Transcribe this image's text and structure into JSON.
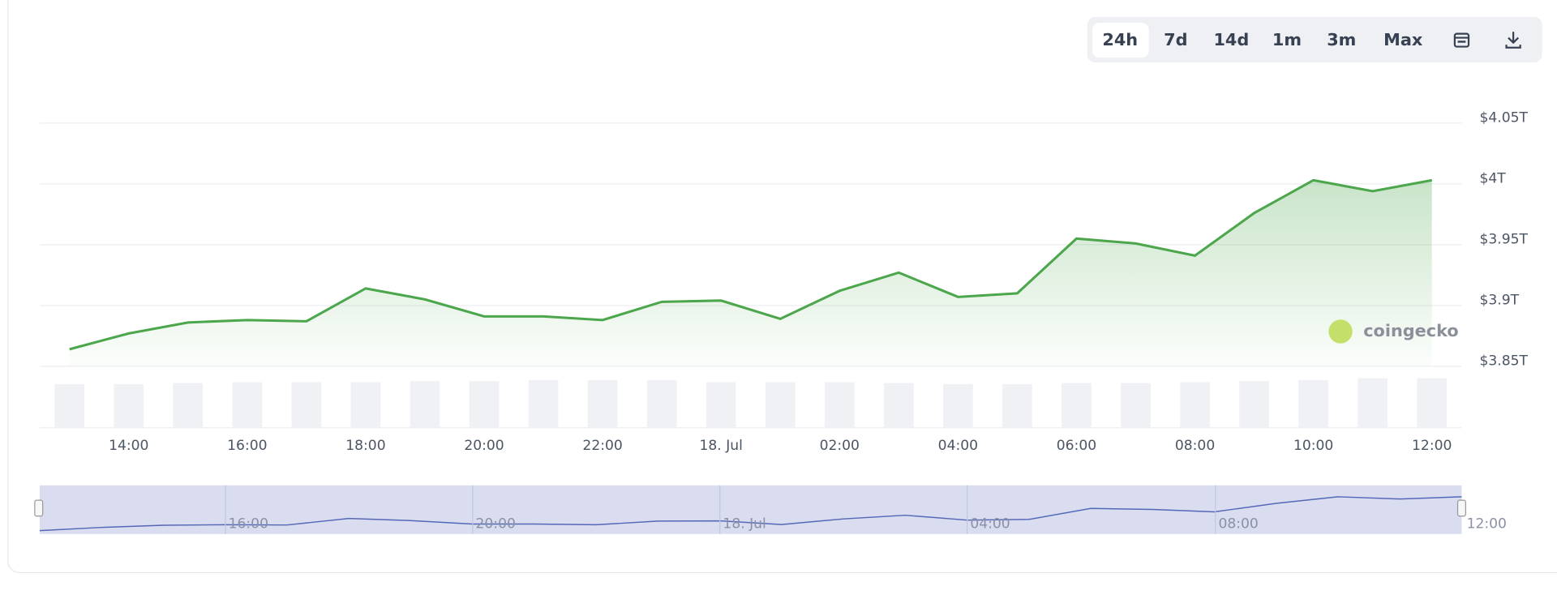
{
  "range_buttons": [
    "24h",
    "7d",
    "14d",
    "1m",
    "3m",
    "Max"
  ],
  "watermark": "coingecko",
  "chart_data": {
    "type": "line",
    "categories": [
      null,
      "14:00",
      null,
      "16:00",
      null,
      "18:00",
      null,
      "20:00",
      null,
      "22:00",
      null,
      "18. Jul",
      null,
      "02:00",
      null,
      "04:00",
      null,
      "06:00",
      null,
      "08:00",
      null,
      "10:00",
      null,
      "12:00"
    ],
    "series": [
      {
        "color": "#4ca64c",
        "values": [
          3.864,
          3.877,
          3.886,
          3.888,
          3.887,
          3.914,
          3.905,
          3.891,
          3.891,
          3.888,
          3.903,
          3.904,
          3.889,
          3.912,
          3.927,
          3.907,
          3.91,
          3.955,
          3.951,
          3.941,
          3.976,
          4.003,
          3.994,
          4.003
        ]
      }
    ],
    "volume": {
      "color": "#f0f1f5",
      "values": [
        44,
        44,
        45,
        46,
        46,
        46,
        47,
        47,
        48,
        48,
        48,
        46,
        46,
        46,
        45,
        44,
        44,
        45,
        45,
        46,
        47,
        48,
        50,
        50
      ]
    },
    "ylim": [
      3.85,
      4.05
    ],
    "yticks": [
      {
        "value": 3.85,
        "label": "$3.85T"
      },
      {
        "value": 3.9,
        "label": "$3.9T"
      },
      {
        "value": 3.95,
        "label": "$3.95T"
      },
      {
        "value": 4.0,
        "label": "$4T"
      },
      {
        "value": 4.05,
        "label": "$4.05T"
      }
    ],
    "grid": true,
    "navigator": {
      "labels": [
        "16:00",
        "20:00",
        "18. Jul",
        "04:00",
        "08:00",
        "12:00"
      ],
      "color": "#5468b8"
    }
  }
}
